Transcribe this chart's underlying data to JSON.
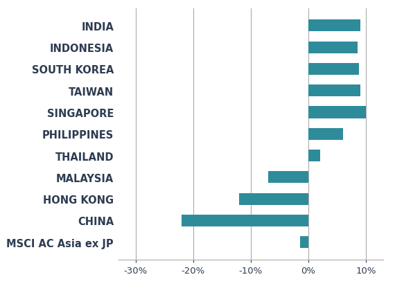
{
  "categories": [
    "INDIA",
    "INDONESIA",
    "SOUTH KOREA",
    "TAIWAN",
    "SINGAPORE",
    "PHILIPPINES",
    "THAILAND",
    "MALAYSIA",
    "HONG KONG",
    "CHINA",
    "MSCI AC Asia ex JP"
  ],
  "values": [
    9.0,
    8.5,
    8.8,
    9.0,
    10.0,
    6.0,
    2.0,
    -7.0,
    -12.0,
    -22.0,
    -1.5
  ],
  "bar_color": "#2e8b9a",
  "xlim": [
    -33,
    13
  ],
  "xticks": [
    -30,
    -20,
    -10,
    0,
    10
  ],
  "xticklabels": [
    "-30%",
    "-20%",
    "-10%",
    "0%",
    "10%"
  ],
  "background_color": "#ffffff",
  "label_color": "#2d3c52",
  "label_fontsize": 10.5,
  "tick_fontsize": 9.5,
  "bar_height": 0.55,
  "grid_color": "#aaaaaa",
  "grid_linewidth": 0.8
}
